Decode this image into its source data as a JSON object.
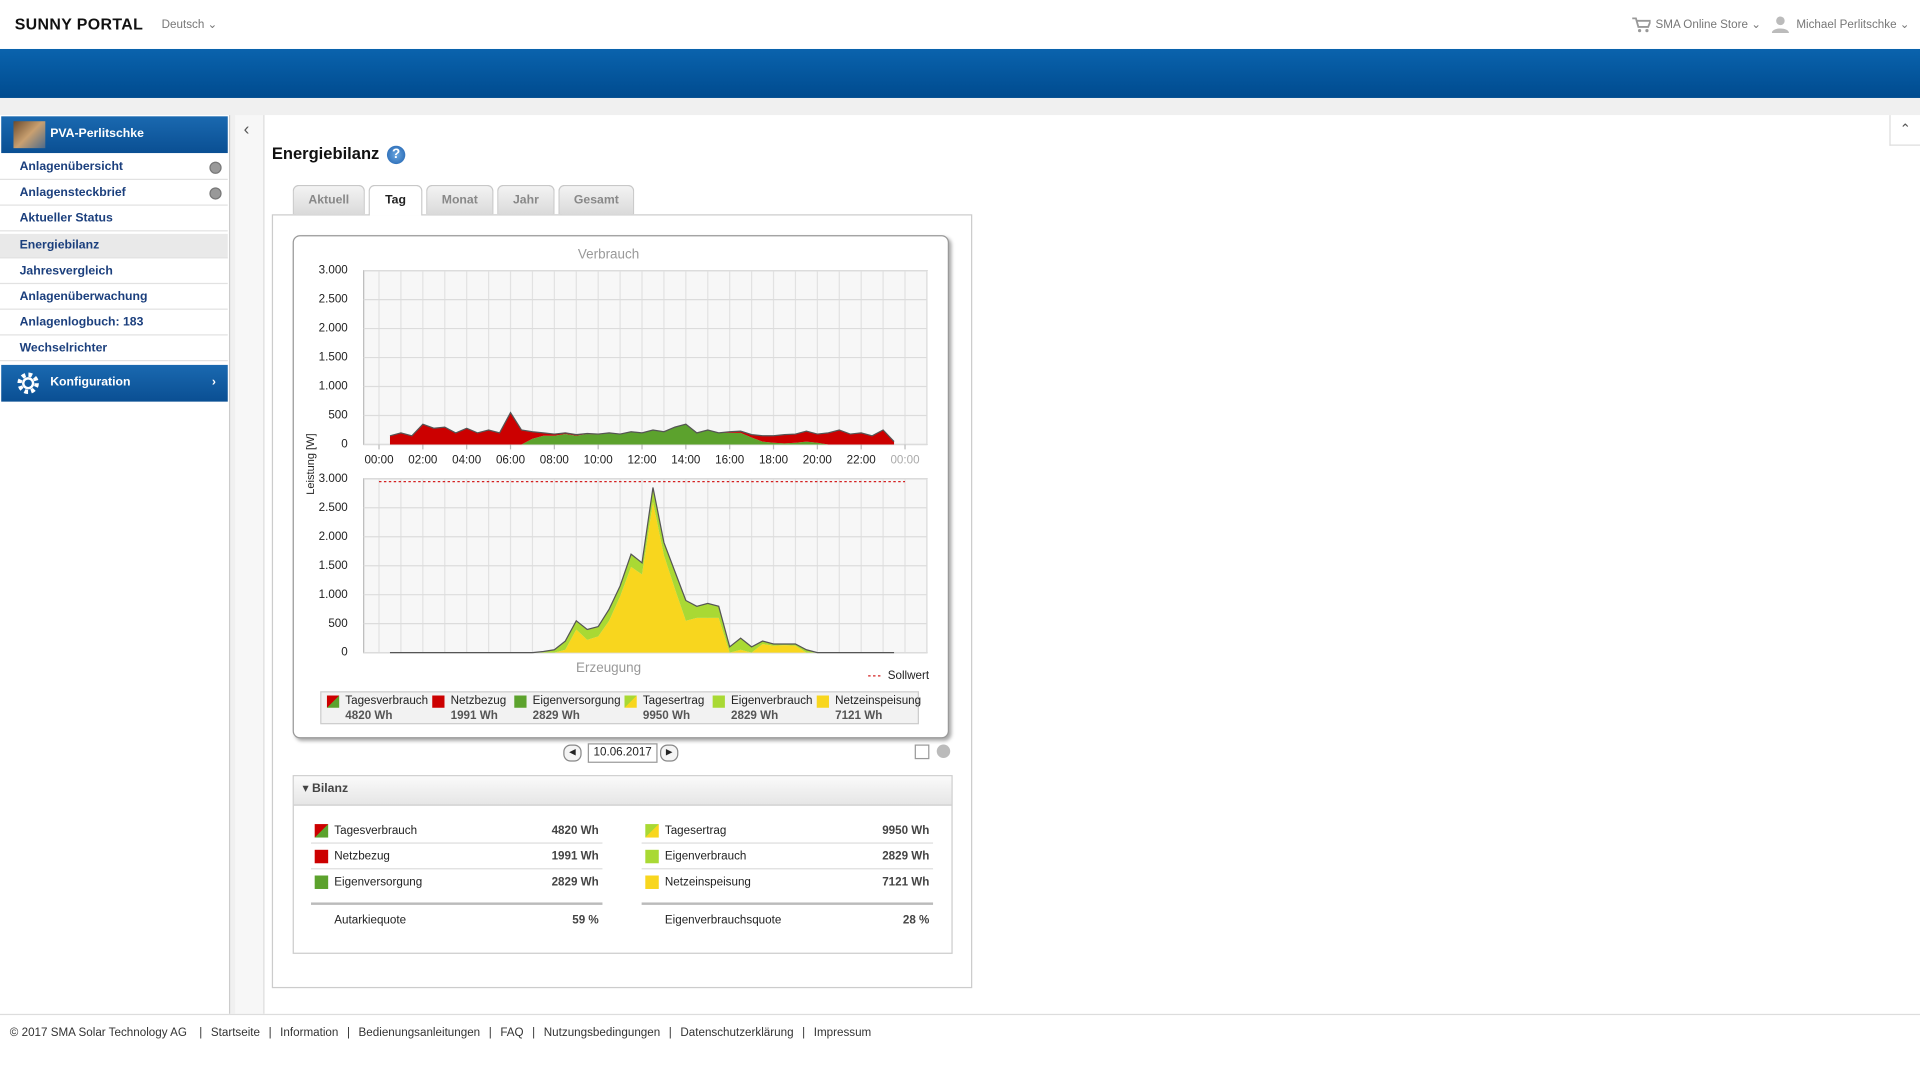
{
  "header": {
    "logo": "SUNNY PORTAL",
    "language": "Deutsch",
    "store": "SMA Online Store",
    "user": "Michael Perlitschke"
  },
  "sidebar": {
    "plant": "PVA-Perlitschke",
    "items": [
      "Anlagenübersicht",
      "Anlagensteckbrief",
      "Aktueller Status",
      "Energiebilanz",
      "Jahresvergleich",
      "Anlagenüberwachung",
      "Anlagenlogbuch: 183",
      "Wechselrichter"
    ],
    "active": 3,
    "config": "Konfiguration"
  },
  "page": {
    "title": "Energiebilanz",
    "tabs": [
      "Aktuell",
      "Tag",
      "Monat",
      "Jahr",
      "Gesamt"
    ],
    "active_tab": 1,
    "date": "10.06.2017",
    "ylabel": "Leistung [W]"
  },
  "chart_data": [
    {
      "type": "area",
      "title": "Verbrauch",
      "total": {
        "name": "Tagesverbrauch",
        "amount": "4820 Wh"
      },
      "x": [
        0.5,
        1,
        1.5,
        2,
        2.5,
        3,
        3.5,
        4,
        4.5,
        5,
        5.5,
        6,
        6.5,
        7,
        7.5,
        8,
        8.5,
        9,
        9.5,
        10,
        10.5,
        11,
        11.5,
        12,
        12.5,
        13,
        13.5,
        14,
        14.5,
        15,
        15.5,
        16,
        16.5,
        17,
        17.5,
        18,
        18.5,
        19,
        19.5,
        20,
        20.5,
        21,
        21.5,
        22,
        22.5,
        23,
        23.5
      ],
      "series": [
        {
          "name": "Eigenversorgung",
          "color": "#5ca22d",
          "amount": "2829 Wh",
          "values": [
            0,
            0,
            0,
            0,
            0,
            0,
            0,
            0,
            0,
            0,
            0,
            0,
            0,
            100,
            150,
            150,
            180,
            150,
            180,
            170,
            200,
            180,
            220,
            200,
            250,
            220,
            300,
            350,
            200,
            250,
            200,
            200,
            200,
            120,
            50,
            30,
            20,
            30,
            50,
            30,
            0,
            0,
            0,
            0,
            0,
            0,
            0
          ]
        },
        {
          "name": "Netzbezug",
          "color": "#cc0000",
          "amount": "1991 Wh",
          "values": [
            150,
            200,
            150,
            350,
            280,
            300,
            200,
            280,
            200,
            250,
            200,
            550,
            250,
            120,
            50,
            30,
            20,
            20,
            10,
            10,
            0,
            0,
            0,
            0,
            0,
            0,
            0,
            0,
            0,
            0,
            0,
            20,
            30,
            50,
            100,
            120,
            150,
            150,
            180,
            150,
            200,
            250,
            180,
            200,
            150,
            250,
            50
          ]
        }
      ],
      "xlim": [
        -0.7,
        25
      ],
      "xticks": [
        {
          "value": 0,
          "label": "00:00"
        },
        {
          "value": 2,
          "label": "02:00"
        },
        {
          "value": 4,
          "label": "04:00"
        },
        {
          "value": 6,
          "label": "06:00"
        },
        {
          "value": 8,
          "label": "08:00"
        },
        {
          "value": 10,
          "label": "10:00"
        },
        {
          "value": 12,
          "label": "12:00"
        },
        {
          "value": 14,
          "label": "14:00"
        },
        {
          "value": 16,
          "label": "16:00"
        },
        {
          "value": 18,
          "label": "18:00"
        },
        {
          "value": 20,
          "label": "20:00"
        },
        {
          "value": 22,
          "label": "22:00"
        },
        {
          "value": 24,
          "label": "00:00"
        }
      ],
      "ylim": [
        0,
        3000
      ],
      "yticks": [
        0,
        500,
        {
          "value": 1000,
          "label": "1.000"
        },
        {
          "value": 1500,
          "label": "1.500"
        },
        {
          "value": 2000,
          "label": "2.000"
        },
        {
          "value": 2500,
          "label": "2.500"
        },
        {
          "value": 3000,
          "label": "3.000"
        }
      ],
      "grid": true
    },
    {
      "type": "area",
      "title": "Erzeugung",
      "total": {
        "name": "Tagesertrag",
        "amount": "9950 Wh"
      },
      "x": [
        0.5,
        1,
        1.5,
        2,
        2.5,
        3,
        3.5,
        4,
        4.5,
        5,
        5.5,
        6,
        6.5,
        7,
        7.5,
        8,
        8.5,
        9,
        9.5,
        10,
        10.5,
        11,
        11.5,
        12,
        12.5,
        13,
        13.5,
        14,
        14.5,
        15,
        15.5,
        16,
        16.5,
        17,
        17.5,
        18,
        18.5,
        19,
        19.5,
        20,
        20.5,
        21,
        21.5,
        22,
        22.5,
        23,
        23.5
      ],
      "series": [
        {
          "name": "Netzeinspeisung",
          "color": "#f8d61e",
          "amount": "7121 Wh",
          "values": [
            0,
            0,
            0,
            0,
            0,
            0,
            0,
            0,
            0,
            0,
            0,
            0,
            0,
            0,
            0,
            0,
            50,
            400,
            220,
            280,
            550,
            970,
            1480,
            1350,
            2600,
            1680,
            1100,
            550,
            600,
            600,
            600,
            0,
            50,
            0,
            150,
            120,
            130,
            120,
            0,
            0,
            0,
            0,
            0,
            0,
            0,
            0,
            0
          ]
        },
        {
          "name": "Eigenverbrauch",
          "color": "#a9d934",
          "amount": "2829 Wh",
          "values": [
            0,
            0,
            0,
            0,
            0,
            0,
            0,
            0,
            0,
            0,
            0,
            0,
            0,
            0,
            20,
            50,
            150,
            150,
            180,
            170,
            200,
            180,
            220,
            200,
            250,
            220,
            300,
            350,
            200,
            250,
            200,
            100,
            200,
            100,
            50,
            30,
            20,
            30,
            50,
            0,
            0,
            0,
            0,
            0,
            0,
            0,
            0
          ]
        }
      ],
      "reference": {
        "name": "Sollwert",
        "value": 2950,
        "color": "#d42020"
      },
      "xlim": [
        -0.7,
        25
      ],
      "ylim": [
        0,
        3000
      ],
      "yticks": [
        0,
        500,
        {
          "value": 1000,
          "label": "1.000"
        },
        {
          "value": 1500,
          "label": "1.500"
        },
        {
          "value": 2000,
          "label": "2.000"
        },
        {
          "value": 2500,
          "label": "2.500"
        },
        {
          "value": 3000,
          "label": "3.000"
        }
      ],
      "grid": true
    }
  ],
  "bilanz": {
    "title": "Bilanz",
    "left_quote": {
      "label": "Autarkiequote",
      "value": "59 %"
    },
    "right_quote": {
      "label": "Eigenverbrauchsquote",
      "value": "28 %"
    }
  },
  "footer": {
    "copyright": "© 2017 SMA Solar Technology AG",
    "links": [
      "Startseite",
      "Information",
      "Bedienungsanleitungen",
      "FAQ",
      "Nutzungsbedingungen",
      "Datenschutzerklärung",
      "Impressum"
    ]
  }
}
